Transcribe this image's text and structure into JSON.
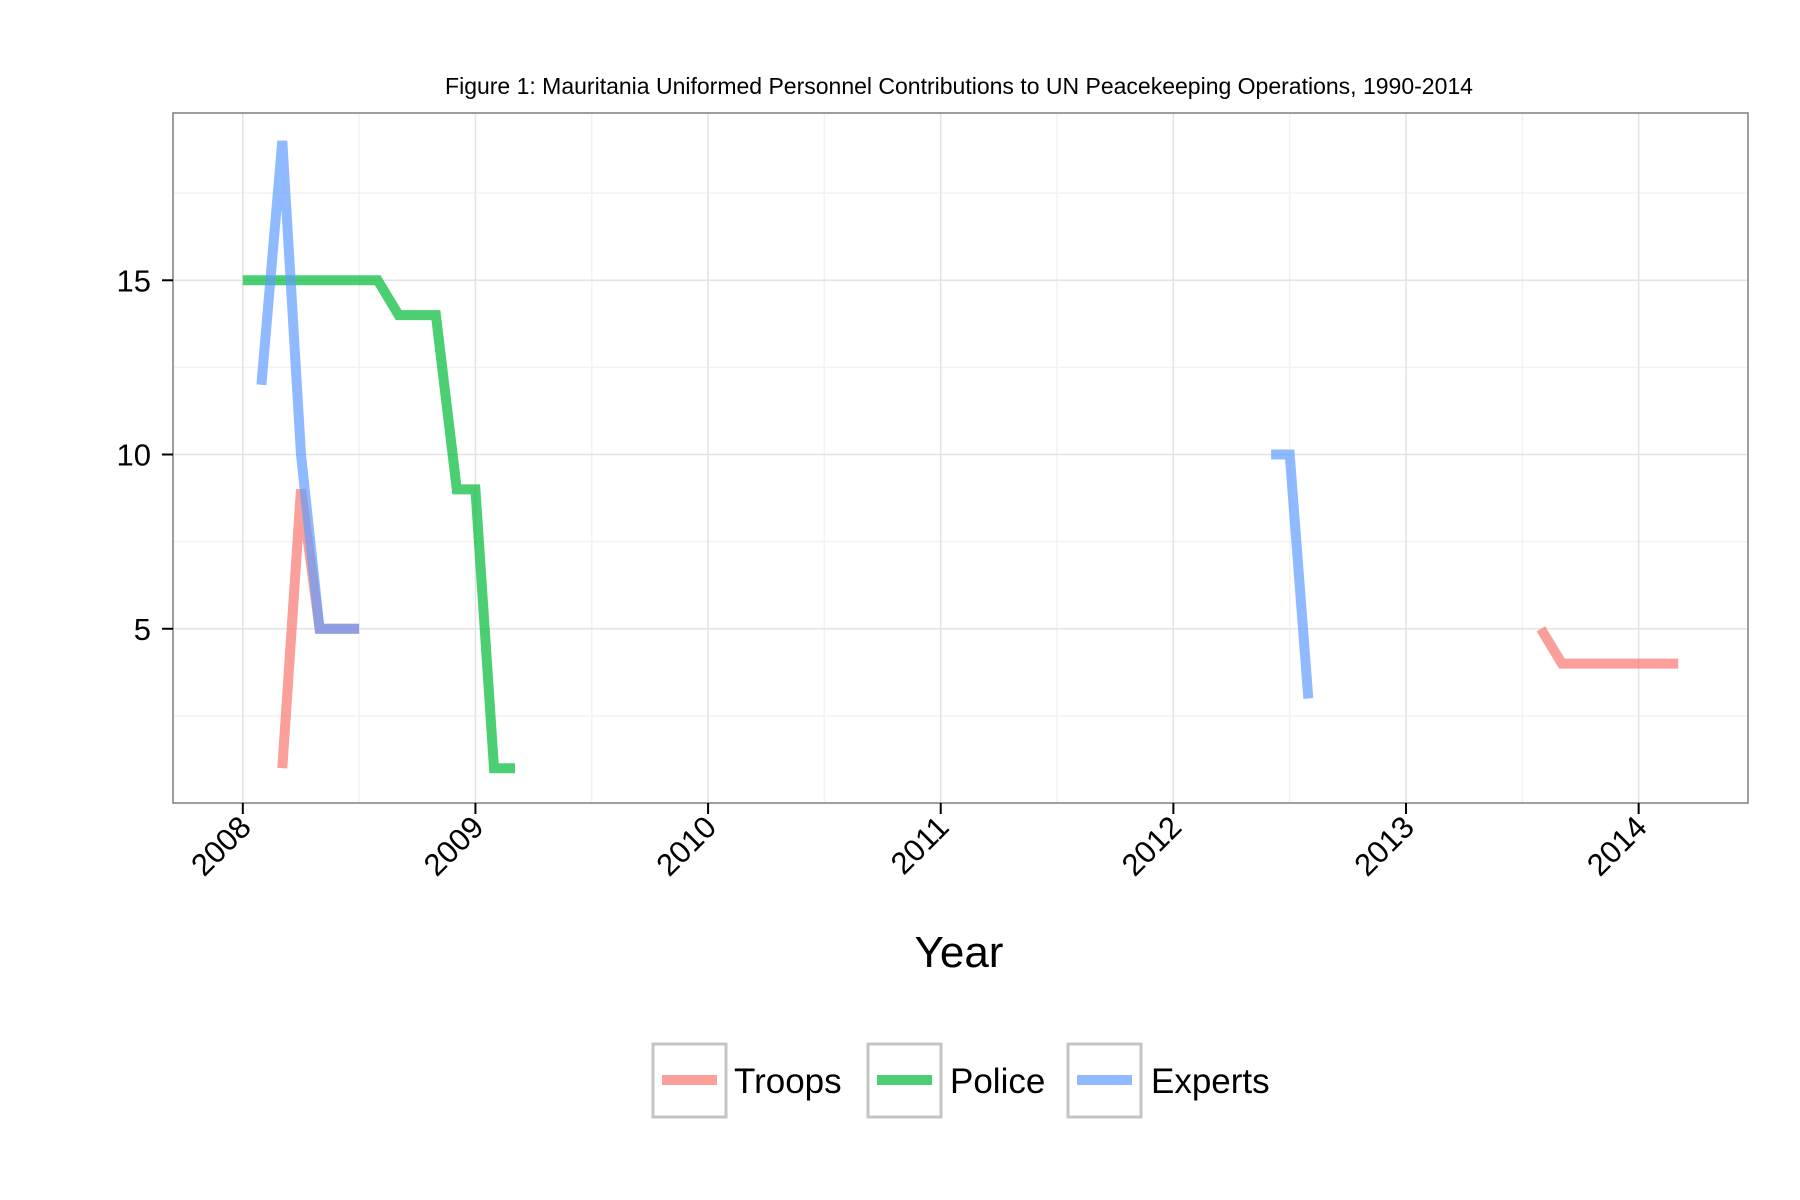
{
  "chart_data": {
    "type": "line",
    "title": "Figure 1: Mauritania Uniformed Personnel Contributions to UN Peacekeeping Operations, 1990-2014",
    "xlabel": "Year",
    "ylabel": "",
    "xlim": [
      2007.7,
      2014.47
    ],
    "ylim": [
      0,
      19.8
    ],
    "x_ticks": [
      2008,
      2009,
      2010,
      2011,
      2012,
      2013,
      2014
    ],
    "x_tick_labels": [
      "2008",
      "2009",
      "2010",
      "2011",
      "2012",
      "2013",
      "2014"
    ],
    "y_ticks": [
      5,
      10,
      15
    ],
    "y_tick_labels": [
      "5",
      "10",
      "15"
    ],
    "grid": true,
    "legend_position": "bottom",
    "series": [
      {
        "name": "Troops",
        "color": "#F8766D",
        "segments": [
          [
            [
              2008.17,
              1
            ],
            [
              2008.25,
              9
            ],
            [
              2008.33,
              5
            ],
            [
              2008.5,
              5
            ]
          ],
          [
            [
              2013.58,
              5
            ],
            [
              2013.67,
              4
            ],
            [
              2014.17,
              4
            ]
          ]
        ]
      },
      {
        "name": "Police",
        "color": "#00BA38",
        "segments": [
          [
            [
              2008.0,
              15
            ],
            [
              2008.58,
              15
            ],
            [
              2008.67,
              14
            ],
            [
              2008.83,
              14
            ],
            [
              2008.92,
              9
            ],
            [
              2009.0,
              9
            ],
            [
              2009.08,
              1
            ],
            [
              2009.17,
              1
            ]
          ]
        ]
      },
      {
        "name": "Experts",
        "color": "#619CFF",
        "segments": [
          [
            [
              2008.08,
              12
            ],
            [
              2008.17,
              19
            ],
            [
              2008.25,
              10
            ],
            [
              2008.33,
              5
            ],
            [
              2008.5,
              5
            ]
          ],
          [
            [
              2012.42,
              10
            ],
            [
              2012.5,
              10
            ],
            [
              2012.58,
              3
            ]
          ]
        ]
      }
    ]
  }
}
